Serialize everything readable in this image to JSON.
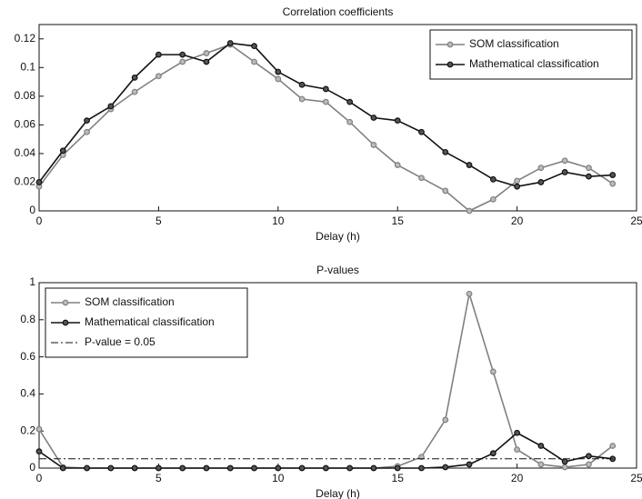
{
  "chart_data": [
    {
      "type": "line",
      "title": "Correlation coefficients",
      "x_label": "Delay (h)",
      "x": [
        0,
        1,
        2,
        3,
        4,
        5,
        6,
        7,
        8,
        9,
        10,
        11,
        12,
        13,
        14,
        15,
        16,
        17,
        18,
        19,
        20,
        21,
        22,
        23,
        24
      ],
      "xlim": [
        0,
        25
      ],
      "xticks": [
        0,
        5,
        10,
        15,
        20,
        25
      ],
      "ylim": [
        0,
        0.13
      ],
      "yticks": [
        0,
        0.02,
        0.04,
        0.06,
        0.08,
        0.1,
        0.12
      ],
      "legend": "upper right",
      "series": [
        {
          "name": "SOM classification",
          "color": "#808080",
          "marker": "circle",
          "values": [
            0.017,
            0.039,
            0.055,
            0.071,
            0.083,
            0.094,
            0.104,
            0.11,
            0.116,
            0.104,
            0.092,
            0.078,
            0.076,
            0.062,
            0.046,
            0.032,
            0.023,
            0.014,
            0.0,
            0.008,
            0.021,
            0.03,
            0.035,
            0.03,
            0.019
          ]
        },
        {
          "name": "Mathematical classification",
          "color": "#111111",
          "marker": "circle",
          "values": [
            0.02,
            0.042,
            0.063,
            0.073,
            0.093,
            0.109,
            0.109,
            0.104,
            0.117,
            0.115,
            0.097,
            0.088,
            0.085,
            0.076,
            0.065,
            0.063,
            0.055,
            0.041,
            0.032,
            0.022,
            0.017,
            0.02,
            0.027,
            0.024,
            0.025
          ]
        }
      ]
    },
    {
      "type": "line",
      "title": "P-values",
      "x_label": "Delay (h)",
      "x": [
        0,
        1,
        2,
        3,
        4,
        5,
        6,
        7,
        8,
        9,
        10,
        11,
        12,
        13,
        14,
        15,
        16,
        17,
        18,
        19,
        20,
        21,
        22,
        23,
        24
      ],
      "xlim": [
        0,
        25
      ],
      "xticks": [
        0,
        5,
        10,
        15,
        20,
        25
      ],
      "ylim": [
        0,
        1
      ],
      "yticks": [
        0,
        0.2,
        0.4,
        0.6,
        0.8,
        1
      ],
      "legend": "upper left",
      "series": [
        {
          "name": "SOM classification",
          "color": "#808080",
          "marker": "circle",
          "values": [
            0.21,
            0.005,
            0,
            0,
            0,
            0,
            0,
            0,
            0,
            0,
            0,
            0,
            0,
            0,
            0,
            0.01,
            0.06,
            0.26,
            0.94,
            0.52,
            0.1,
            0.02,
            0.005,
            0.02,
            0.12
          ]
        },
        {
          "name": "Mathematical classification",
          "color": "#111111",
          "marker": "circle",
          "values": [
            0.09,
            0,
            0,
            0,
            0,
            0,
            0,
            0,
            0,
            0,
            0,
            0,
            0,
            0,
            0,
            0,
            0,
            0.005,
            0.02,
            0.08,
            0.19,
            0.12,
            0.035,
            0.065,
            0.05
          ]
        },
        {
          "name": "P-value = 0.05",
          "color": "#111111",
          "dash": "dashdot",
          "x": [
            0,
            24
          ],
          "values": [
            0.05,
            0.05
          ]
        }
      ]
    }
  ]
}
